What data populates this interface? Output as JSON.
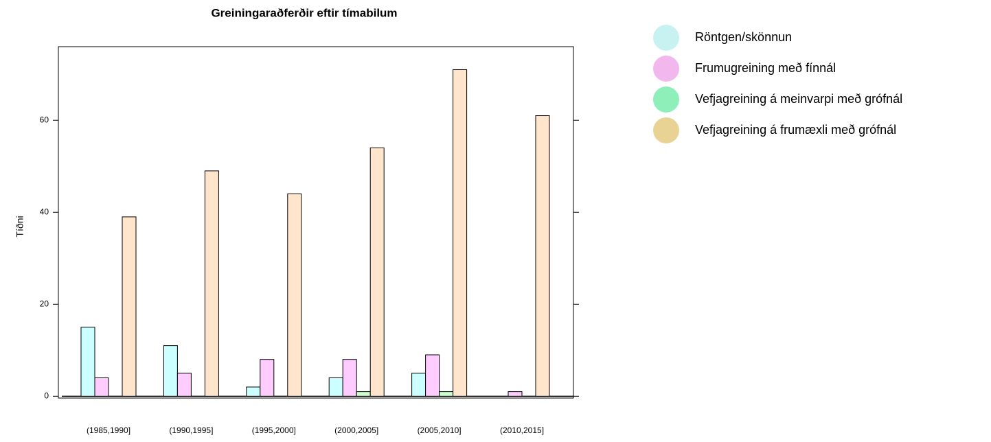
{
  "chart_data": {
    "type": "bar",
    "title": "Greiningaraðferðir eftir tímabilum",
    "y_label": "Tíðni",
    "categories": [
      "(1985,1990]",
      "(1990,1995]",
      "(1995,2000]",
      "(2000,2005]",
      "(2005,2010]",
      "(2010,2015]"
    ],
    "series": [
      {
        "name": "Röntgen/skönnun",
        "color": "#ccffff",
        "legend_color": "#c8f2f2",
        "values": [
          15,
          11,
          2,
          4,
          5,
          0
        ]
      },
      {
        "name": "Frumugreining með fínnál",
        "color": "#ffccff",
        "legend_color": "#f2b8ee",
        "values": [
          4,
          5,
          8,
          8,
          9,
          1
        ]
      },
      {
        "name": "Vefjagreining á meinvarpi með grófnál",
        "color": "#ccffcc",
        "legend_color": "#8ef0b8",
        "values": [
          0,
          0,
          0,
          1,
          1,
          0
        ]
      },
      {
        "name": "Vefjagreining á frumæxli með grófnál",
        "color": "#ffe5cc",
        "legend_color": "#e8d294",
        "values": [
          39,
          49,
          44,
          54,
          71,
          61
        ]
      }
    ],
    "ylim": [
      -0.4,
      76
    ],
    "yticks": [
      0,
      20,
      40,
      60
    ]
  }
}
